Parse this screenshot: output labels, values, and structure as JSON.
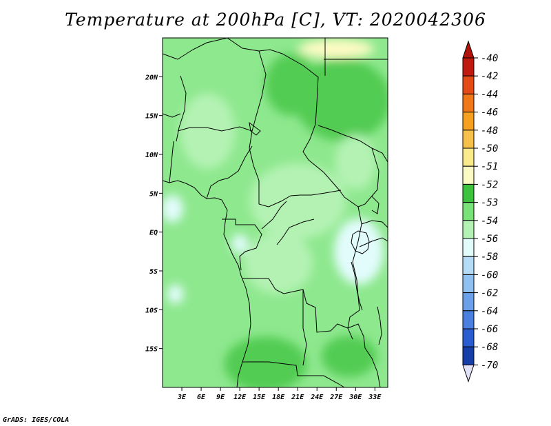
{
  "title": "Temperature at 200hPa [C], VT: 2020042306",
  "credit": "GrADS: IGES/COLA",
  "map": {
    "lon_range": [
      0,
      35
    ],
    "lat_range": [
      -20,
      25
    ],
    "lat_ticks": [
      {
        "label": "20N",
        "lat": 20
      },
      {
        "label": "15N",
        "lat": 15
      },
      {
        "label": "10N",
        "lat": 10
      },
      {
        "label": "5N",
        "lat": 5
      },
      {
        "label": "EQ",
        "lat": 0
      },
      {
        "label": "5S",
        "lat": -5
      },
      {
        "label": "10S",
        "lat": -10
      },
      {
        "label": "15S",
        "lat": -15
      }
    ],
    "lon_ticks": [
      {
        "label": "3E",
        "lon": 3
      },
      {
        "label": "6E",
        "lon": 6
      },
      {
        "label": "9E",
        "lon": 9
      },
      {
        "label": "12E",
        "lon": 12
      },
      {
        "label": "15E",
        "lon": 15
      },
      {
        "label": "18E",
        "lon": 18
      },
      {
        "label": "21E",
        "lon": 21
      },
      {
        "label": "24E",
        "lon": 24
      },
      {
        "label": "27E",
        "lon": 27
      },
      {
        "label": "30E",
        "lon": 30
      },
      {
        "label": "33E",
        "lon": 33
      }
    ]
  },
  "colorbar": {
    "items": [
      {
        "label": "-40",
        "color": "#c01a0e"
      },
      {
        "label": "-42",
        "color": "#e34a16"
      },
      {
        "label": "-44",
        "color": "#f07818"
      },
      {
        "label": "-46",
        "color": "#f5a020"
      },
      {
        "label": "-48",
        "color": "#f7c04a"
      },
      {
        "label": "-50",
        "color": "#faea8c"
      },
      {
        "label": "-51",
        "color": "#fdfbc4"
      },
      {
        "label": "-52",
        "color": "#3cc23c"
      },
      {
        "label": "-53",
        "color": "#78e278"
      },
      {
        "label": "-54",
        "color": "#b4f2b4"
      },
      {
        "label": "-56",
        "color": "#e2fcfc"
      },
      {
        "label": "-58",
        "color": "#b4dcf8"
      },
      {
        "label": "-60",
        "color": "#8ec0f2"
      },
      {
        "label": "-62",
        "color": "#6aa0ea"
      },
      {
        "label": "-64",
        "color": "#4a80e0"
      },
      {
        "label": "-66",
        "color": "#2a5ed0"
      },
      {
        "label": "-68",
        "color": "#163ea8"
      },
      {
        "label": "-70",
        "color": "#0a1a70"
      }
    ],
    "top_arrow_color": "#b0120a",
    "bottom_arrow_color": "#e2e2f8"
  },
  "fields": {
    "base_color": "#8ee88e",
    "patches": [
      {
        "name": "sahara-pale-yellow",
        "color": "#fdfbc4",
        "lon": 27,
        "lat": 23.6,
        "rx": 55,
        "ry": 14
      },
      {
        "name": "north-dark-green",
        "color": "#52cc52",
        "lon": 28,
        "lat": 17,
        "rx": 70,
        "ry": 60
      },
      {
        "name": "chad-dark-green",
        "color": "#52cc52",
        "lon": 20,
        "lat": 19,
        "rx": 38,
        "ry": 45
      },
      {
        "name": "west-light-green",
        "color": "#b4f2b4",
        "lon": 7,
        "lat": 13,
        "rx": 40,
        "ry": 55
      },
      {
        "name": "central-light-green",
        "color": "#b4f2b4",
        "lon": 21,
        "lat": 4,
        "rx": 70,
        "ry": 55
      },
      {
        "name": "east-light-green",
        "color": "#b4f2b4",
        "lon": 30,
        "lat": 9,
        "rx": 30,
        "ry": 40
      },
      {
        "name": "congo-light-green",
        "color": "#b4f2b4",
        "lon": 18,
        "lat": -4,
        "rx": 50,
        "ry": 45
      },
      {
        "name": "lake-victoria-cyan",
        "color": "#e2fcfc",
        "lon": 30.5,
        "lat": -2.5,
        "rx": 36,
        "ry": 48
      },
      {
        "name": "gulf-guinea-cyan",
        "color": "#e2fcfc",
        "lon": 1.5,
        "lat": 3,
        "rx": 16,
        "ry": 20
      },
      {
        "name": "atlantic-cyan",
        "color": "#e2fcfc",
        "lon": 2,
        "lat": -8,
        "rx": 12,
        "ry": 14
      },
      {
        "name": "gabon-cyan",
        "color": "#e2fcfc",
        "lon": 12,
        "lat": -1.5,
        "rx": 12,
        "ry": 14
      },
      {
        "name": "south-dark-green",
        "color": "#52cc52",
        "lon": 16,
        "lat": -17,
        "rx": 60,
        "ry": 40
      },
      {
        "name": "southeast-dark-green",
        "color": "#52cc52",
        "lon": 29,
        "lat": -16,
        "rx": 40,
        "ry": 30
      }
    ]
  }
}
